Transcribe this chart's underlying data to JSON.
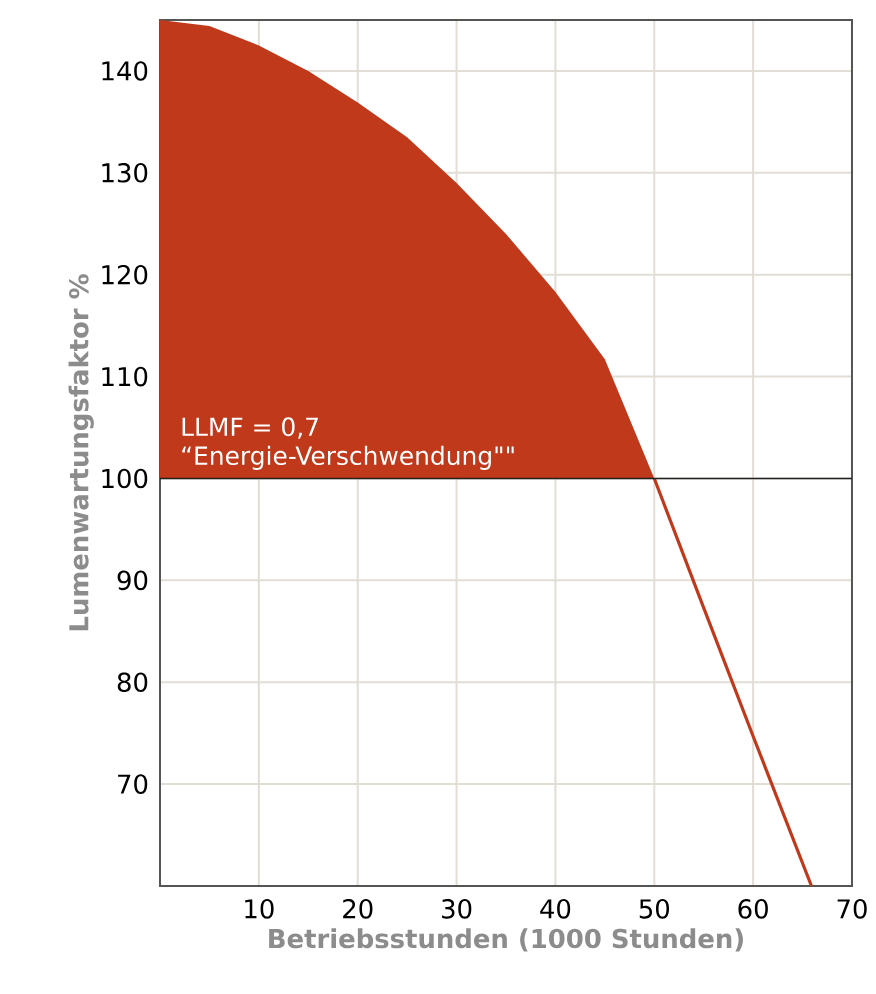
{
  "chart_data": {
    "type": "area",
    "xlabel": "Betriebsstunden (1000 Stunden)",
    "ylabel": "Lumenwartungsfaktor %",
    "xlim": [
      0,
      70
    ],
    "ylim": [
      60,
      145
    ],
    "xticks": [
      10,
      20,
      30,
      40,
      50,
      60,
      70
    ],
    "yticks": [
      70,
      80,
      90,
      100,
      110,
      120,
      130,
      140
    ],
    "grid": true,
    "series": [
      {
        "color": "#c0391b",
        "x": [
          0,
          5,
          10,
          15,
          20,
          25,
          30,
          35,
          40,
          45,
          50
        ],
        "values": [
          145,
          144.4,
          142.5,
          140,
          136.9,
          133.5,
          129,
          124,
          118.3,
          111.7,
          100
        ]
      },
      {
        "type": "line",
        "color": "#c0391b",
        "x": [
          50,
          55,
          60,
          65.9
        ],
        "values": [
          100,
          87.3,
          74.7,
          60
        ]
      }
    ],
    "ref_lines": [
      {
        "axis": "y",
        "value": 100,
        "color": "#222222"
      }
    ],
    "annotations": [
      "LLMF = 0,7",
      "“Energie-Verschwendung\"\""
    ]
  }
}
